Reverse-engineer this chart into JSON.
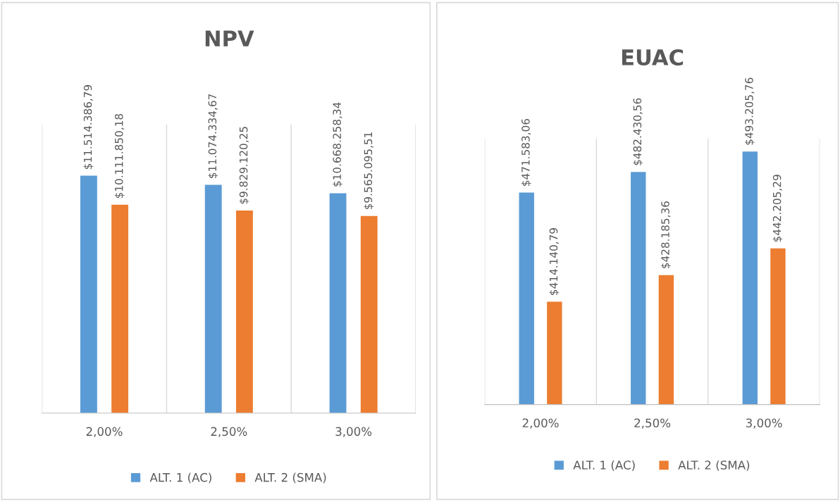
{
  "chart_data": [
    {
      "type": "bar",
      "title": "NPV",
      "categories": [
        "2,00%",
        "2,50%",
        "3,00%"
      ],
      "ylim": [
        0,
        14000000
      ],
      "grid": "x",
      "legend": "bottom",
      "tick_labels": "x",
      "series": [
        {
          "name": "ALT. 1 (AC)",
          "color": "#5b9bd5",
          "values": [
            11514386.79,
            11074334.67,
            10668258.34
          ],
          "value_labels": [
            "$11.514.386,79",
            "$11.074.334,67",
            "$10.668.258,34"
          ]
        },
        {
          "name": "ALT. 2 (SMA)",
          "color": "#ed7d31",
          "values": [
            10111850.18,
            9829120.25,
            9565095.51
          ],
          "value_labels": [
            "$10.111.850,18",
            "$9.829.120,25",
            "$9.565.095,51"
          ]
        }
      ]
    },
    {
      "type": "bar",
      "title": "EUAC",
      "categories": [
        "2,00%",
        "2,50%",
        "3,00%"
      ],
      "ylim": [
        360000,
        500000
      ],
      "grid": "x",
      "legend": "bottom",
      "tick_labels": "x",
      "series": [
        {
          "name": "ALT. 1 (AC)",
          "color": "#5b9bd5",
          "values": [
            471583.06,
            482430.56,
            493205.76
          ],
          "value_labels": [
            "$471.583,06",
            "$482.430,56",
            "$493.205,76"
          ]
        },
        {
          "name": "ALT. 2 (SMA)",
          "color": "#ed7d31",
          "values": [
            414140.79,
            428185.36,
            442205.29
          ],
          "value_labels": [
            "$414.140,79",
            "$428.185,36",
            "$442.205,29"
          ]
        }
      ]
    }
  ]
}
